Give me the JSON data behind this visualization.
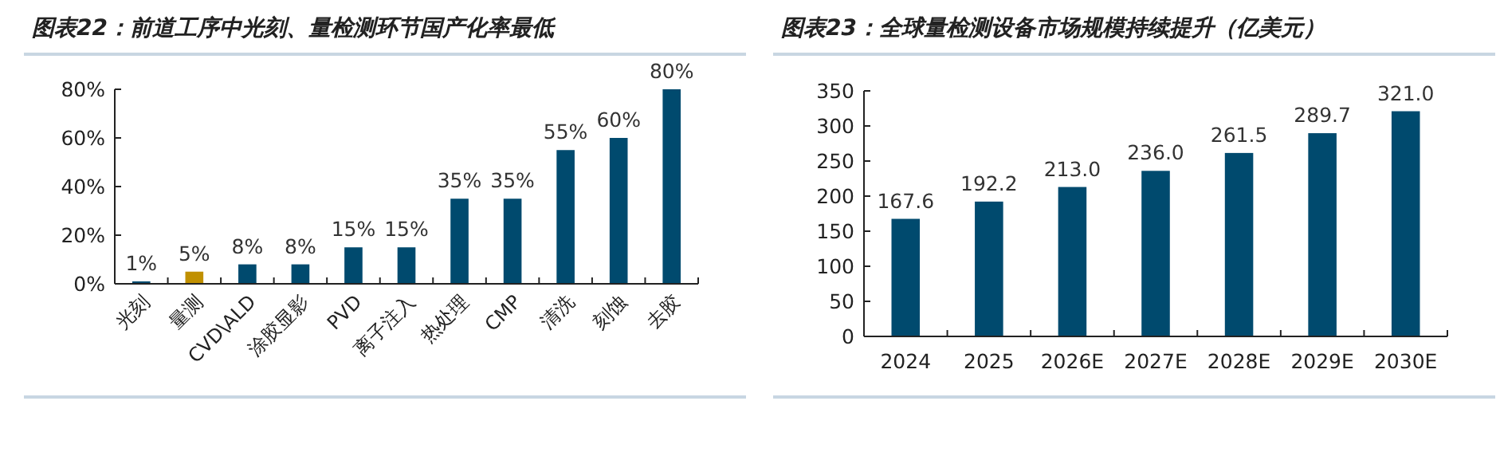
{
  "chart_data": [
    {
      "type": "bar",
      "title": "图表22：前道工序中光刻、量检测环节国产化率最低",
      "categories": [
        "光刻",
        "量测",
        "CVD\\ALD",
        "涂胶显影",
        "PVD",
        "离子注入",
        "热处理",
        "CMP",
        "清洗",
        "刻蚀",
        "去胶"
      ],
      "values": [
        1,
        5,
        8,
        8,
        15,
        15,
        35,
        35,
        55,
        60,
        80
      ],
      "colors": [
        "#004a6e",
        "#c09000",
        "#004a6e",
        "#004a6e",
        "#004a6e",
        "#004a6e",
        "#004a6e",
        "#004a6e",
        "#004a6e",
        "#004a6e",
        "#004a6e"
      ],
      "value_labels": [
        "1%",
        "5%",
        "8%",
        "8%",
        "15%",
        "15%",
        "35%",
        "35%",
        "55%",
        "60%",
        "80%"
      ],
      "ylim": [
        0,
        80
      ],
      "yticks": [
        {
          "value": 0,
          "label": "0%"
        },
        {
          "value": 20,
          "label": "20%"
        },
        {
          "value": 40,
          "label": "40%"
        },
        {
          "value": 60,
          "label": "60%"
        },
        {
          "value": 80,
          "label": "80%"
        }
      ]
    },
    {
      "type": "bar",
      "title": "图表23：全球量检测设备市场规模持续提升（亿美元）",
      "categories": [
        "2024",
        "2025",
        "2026E",
        "2027E",
        "2028E",
        "2029E",
        "2030E"
      ],
      "values": [
        167.6,
        192.2,
        213.0,
        236.0,
        261.5,
        289.7,
        321.0
      ],
      "colors": [
        "#004a6e",
        "#004a6e",
        "#004a6e",
        "#004a6e",
        "#004a6e",
        "#004a6e",
        "#004a6e"
      ],
      "value_labels": [
        "167.6",
        "192.2",
        "213.0",
        "236.0",
        "261.5",
        "289.7",
        "321.0"
      ],
      "ylim": [
        0,
        350
      ],
      "yticks": [
        0,
        50,
        100,
        150,
        200,
        250,
        300,
        350
      ]
    }
  ]
}
